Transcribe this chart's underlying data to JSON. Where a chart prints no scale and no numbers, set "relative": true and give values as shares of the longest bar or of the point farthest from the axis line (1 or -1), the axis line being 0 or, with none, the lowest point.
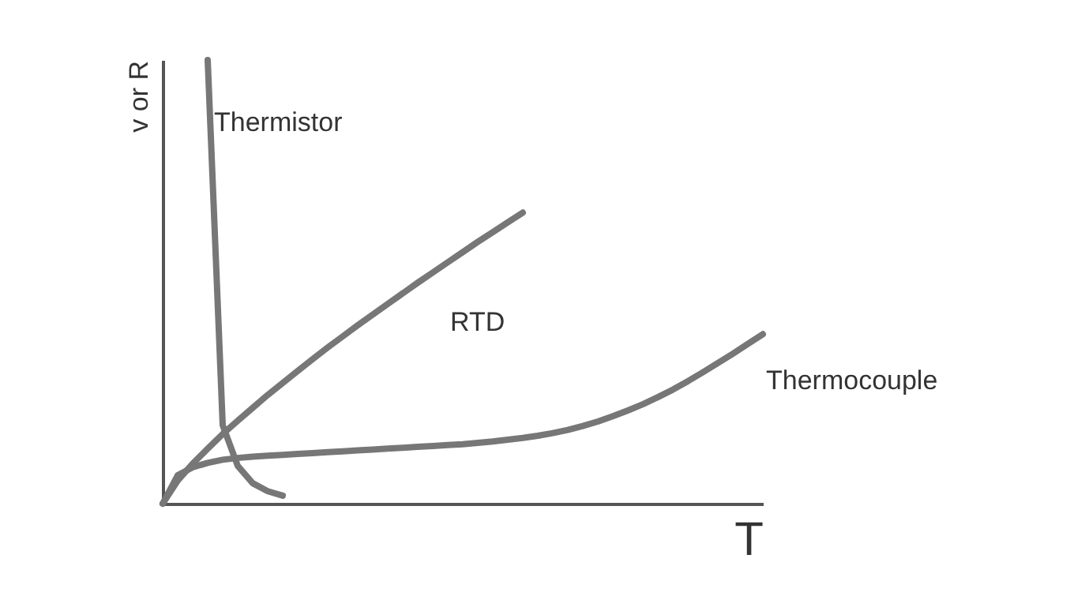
{
  "chart_data": {
    "type": "line",
    "relative": true,
    "xlabel": "T",
    "ylabel": "v or R",
    "legend": false,
    "grid": false,
    "tick_labels": false,
    "categories": [
      null,
      null,
      null,
      null,
      null,
      null,
      null,
      null,
      null,
      null,
      null,
      null,
      null,
      null,
      null,
      null,
      null,
      null,
      null,
      null,
      null,
      null,
      null,
      null,
      null,
      null,
      null,
      null,
      null,
      null,
      null,
      null,
      null,
      null,
      null,
      null,
      null,
      null,
      null,
      null,
      null
    ],
    "series": [
      {
        "name": "Thermistor",
        "color": "#777777",
        "values": [
          null,
          null,
          null,
          1.0,
          0.177,
          0.085,
          0.046,
          0.028,
          0.018,
          null,
          null,
          null,
          null,
          null,
          null,
          null,
          null,
          null,
          null,
          null,
          null,
          null,
          null,
          null,
          null,
          null,
          null,
          null,
          null,
          null,
          null,
          null,
          null,
          null,
          null,
          null,
          null,
          null,
          null,
          null,
          null
        ]
      },
      {
        "name": "RTD",
        "color": "#777777",
        "values": [
          0,
          0.052,
          0.09,
          0.124,
          0.157,
          0.187,
          0.216,
          0.245,
          0.272,
          0.299,
          0.326,
          0.352,
          0.377,
          0.402,
          0.426,
          0.45,
          0.474,
          0.498,
          0.521,
          0.544,
          0.567,
          0.59,
          0.612,
          0.634,
          0.656,
          null,
          null,
          null,
          null,
          null,
          null,
          null,
          null,
          null,
          null,
          null,
          null,
          null,
          null,
          null,
          null
        ]
      },
      {
        "name": "Thermocouple",
        "color": "#777777",
        "values": [
          0,
          0.064,
          0.082,
          0.092,
          0.099,
          0.103,
          0.106,
          0.108,
          0.11,
          0.112,
          0.114,
          0.116,
          0.118,
          0.12,
          0.122,
          0.124,
          0.126,
          0.128,
          0.13,
          0.132,
          0.134,
          0.137,
          0.14,
          0.144,
          0.148,
          0.153,
          0.159,
          0.166,
          0.175,
          0.185,
          0.197,
          0.21,
          0.224,
          0.24,
          0.257,
          0.276,
          0.296,
          0.317,
          0.338,
          0.36,
          0.382
        ]
      }
    ]
  }
}
